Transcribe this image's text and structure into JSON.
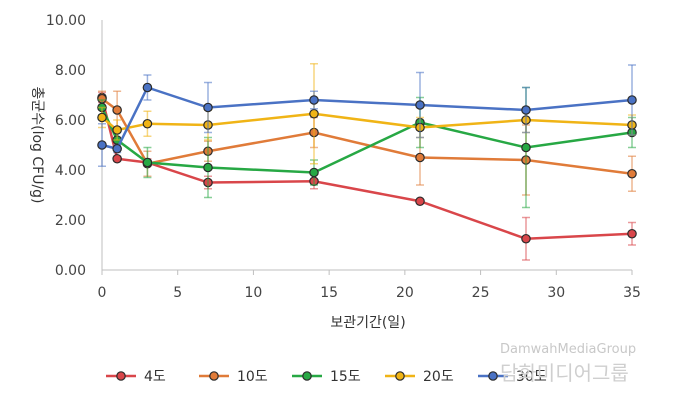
{
  "chart_data": {
    "type": "line",
    "xlabel": "보관기간(일)",
    "ylabel": "총균수(log CFU/g)",
    "xlim": [
      0,
      35
    ],
    "ylim": [
      0,
      10
    ],
    "x_ticks": [
      "0",
      "5",
      "10",
      "15",
      "20",
      "25",
      "30",
      "35"
    ],
    "y_ticks": [
      "0.00",
      "2.00",
      "4.00",
      "6.00",
      "8.00",
      "10.00"
    ],
    "grid": false,
    "legend_position": "bottom",
    "series": [
      {
        "name": "4도",
        "color": "#d9464a",
        "points": [
          {
            "x": 0,
            "y": 6.9,
            "err": 0.2
          },
          {
            "x": 1,
            "y": 4.45,
            "err": 0.1
          },
          {
            "x": 3,
            "y": 4.3,
            "err": 0.15
          },
          {
            "x": 7,
            "y": 3.5,
            "err": 0.25
          },
          {
            "x": 14,
            "y": 3.55,
            "err": 0.3
          },
          {
            "x": 21,
            "y": 2.75,
            "err": 0.05
          },
          {
            "x": 28,
            "y": 1.25,
            "err": 0.85
          },
          {
            "x": 35,
            "y": 1.45,
            "err": 0.45
          }
        ]
      },
      {
        "name": "10도",
        "color": "#e07b39",
        "points": [
          {
            "x": 0,
            "y": 6.85,
            "err": 0.3
          },
          {
            "x": 1,
            "y": 6.4,
            "err": 0.75
          },
          {
            "x": 3,
            "y": 4.25,
            "err": 0.5
          },
          {
            "x": 7,
            "y": 4.75,
            "err": 0.4
          },
          {
            "x": 14,
            "y": 5.5,
            "err": 0.6
          },
          {
            "x": 21,
            "y": 4.5,
            "err": 1.1
          },
          {
            "x": 28,
            "y": 4.4,
            "err": 1.4
          },
          {
            "x": 35,
            "y": 3.85,
            "err": 0.7
          }
        ]
      },
      {
        "name": "15도",
        "color": "#27a844",
        "points": [
          {
            "x": 0,
            "y": 6.5,
            "err": 0.3
          },
          {
            "x": 1,
            "y": 5.2,
            "err": 0.4
          },
          {
            "x": 3,
            "y": 4.3,
            "err": 0.6
          },
          {
            "x": 7,
            "y": 4.1,
            "err": 1.2
          },
          {
            "x": 14,
            "y": 3.9,
            "err": 0.5
          },
          {
            "x": 21,
            "y": 5.9,
            "err": 1.0
          },
          {
            "x": 28,
            "y": 4.9,
            "err": 2.4
          },
          {
            "x": 35,
            "y": 5.5,
            "err": 0.6
          }
        ]
      },
      {
        "name": "20도",
        "color": "#f0b416",
        "points": [
          {
            "x": 0,
            "y": 6.1,
            "err": 0.4
          },
          {
            "x": 1,
            "y": 5.6,
            "err": 0.4
          },
          {
            "x": 3,
            "y": 5.85,
            "err": 0.5
          },
          {
            "x": 7,
            "y": 5.8,
            "err": 0.6
          },
          {
            "x": 14,
            "y": 6.25,
            "err": 2.0
          },
          {
            "x": 21,
            "y": 5.7,
            "err": 0.4
          },
          {
            "x": 28,
            "y": 6.0,
            "err": 0.5
          },
          {
            "x": 35,
            "y": 5.8,
            "err": 0.4
          }
        ]
      },
      {
        "name": "30도",
        "color": "#4a72c4",
        "points": [
          {
            "x": 0,
            "y": 5.0,
            "err": 0.85
          },
          {
            "x": 1,
            "y": 4.85,
            "err": 0.15
          },
          {
            "x": 3,
            "y": 7.3,
            "err": 0.5
          },
          {
            "x": 7,
            "y": 6.5,
            "err": 1.0
          },
          {
            "x": 14,
            "y": 6.8,
            "err": 0.35
          },
          {
            "x": 21,
            "y": 6.6,
            "err": 1.3
          },
          {
            "x": 28,
            "y": 6.4,
            "err": 0.9
          },
          {
            "x": 35,
            "y": 6.8,
            "err": 1.4
          }
        ]
      }
    ]
  },
  "watermark": {
    "line1": "DamwahMediaGroup",
    "line2": "담화미디어그룹"
  }
}
